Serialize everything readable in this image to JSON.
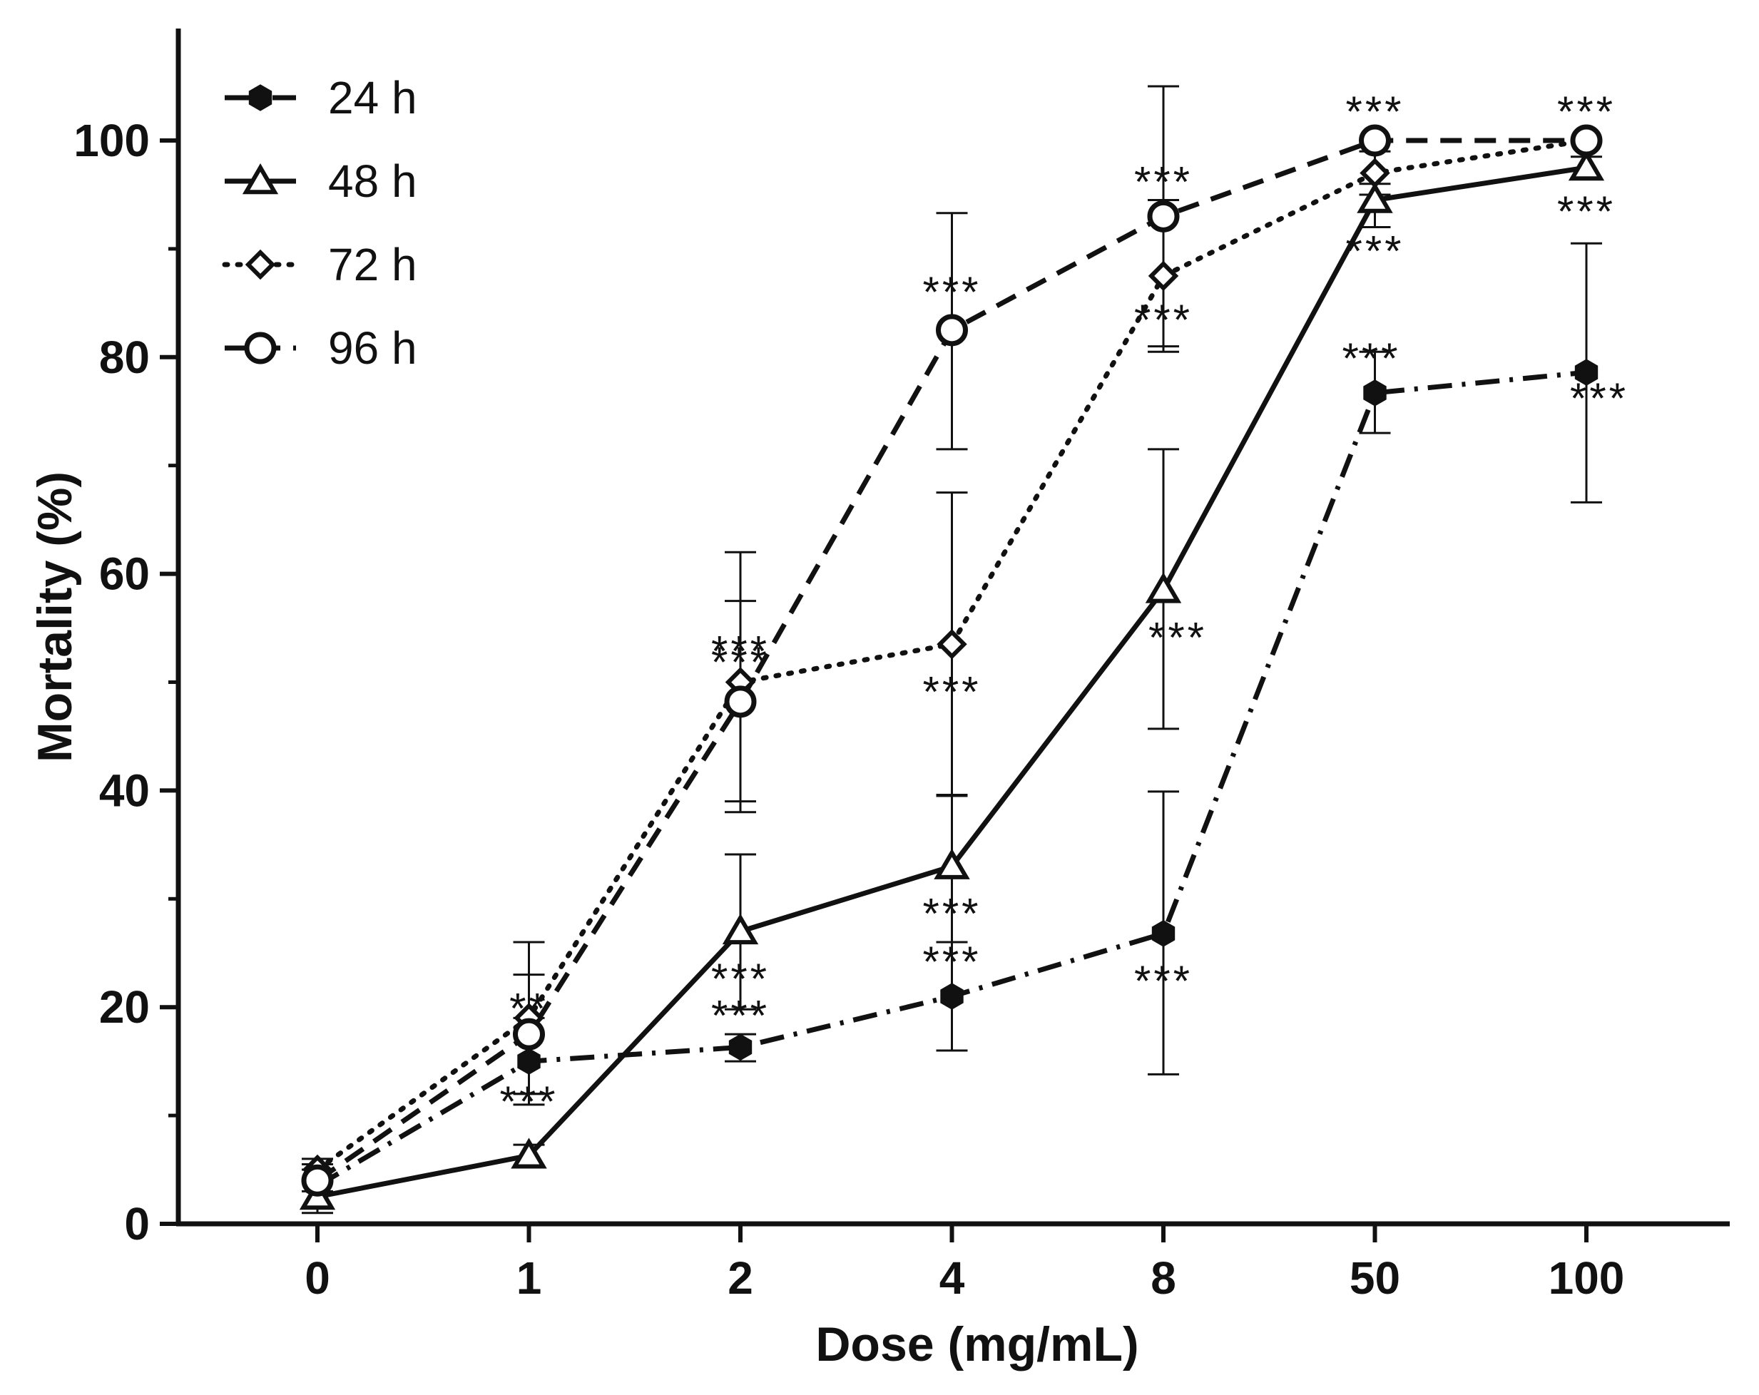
{
  "chart_data": {
    "type": "line",
    "title": "",
    "xlabel": "Dose (mg/mL)",
    "ylabel": "Mortality (%)",
    "categories": [
      "0",
      "1",
      "2",
      "4",
      "8",
      "50",
      "100"
    ],
    "ylim": [
      0,
      110
    ],
    "yticks": [
      0,
      20,
      40,
      60,
      80,
      100
    ],
    "grid": false,
    "legend_position": "top-left",
    "series": [
      {
        "name": "24 h",
        "line_style": "dash-dot",
        "marker": "filled-hexagon",
        "values": [
          3.5,
          15,
          16.3,
          21,
          26.8,
          76.7,
          78.6
        ],
        "error_low": [
          1.5,
          11,
          15,
          16,
          13.8,
          73,
          66.6
        ],
        "error_high": [
          5.5,
          19,
          17.5,
          26,
          39.9,
          80.5,
          90.5
        ],
        "significance": [
          "",
          "***",
          "***",
          "***",
          "***",
          "***",
          "***"
        ]
      },
      {
        "name": "48 h",
        "line_style": "solid",
        "marker": "open-triangle",
        "values": [
          2.5,
          6.3,
          27,
          33,
          58.5,
          94.5,
          97.5
        ],
        "error_low": [
          1,
          5.4,
          19.8,
          26,
          45.7,
          92,
          96.5
        ],
        "error_high": [
          4,
          7.3,
          34.1,
          39.5,
          71.5,
          96,
          98.5
        ],
        "significance": [
          "",
          "",
          "***",
          "***",
          "***",
          "***",
          "***"
        ]
      },
      {
        "name": "72 h",
        "line_style": "dotted",
        "marker": "open-diamond",
        "values": [
          5,
          19,
          50,
          53.5,
          87.5,
          97,
          100
        ],
        "error_low": [
          4,
          12,
          38,
          39.6,
          80.5,
          95,
          100
        ],
        "error_high": [
          6,
          26,
          62,
          67.5,
          94.5,
          99,
          100
        ],
        "significance": [
          "",
          "**",
          "***",
          "***",
          "***",
          "",
          ""
        ]
      },
      {
        "name": "96 h",
        "line_style": "dashed",
        "marker": "open-circle",
        "values": [
          4,
          17.5,
          48.2,
          82.5,
          93,
          100,
          100
        ],
        "error_low": [
          3,
          12,
          39,
          71.5,
          81,
          100,
          100
        ],
        "error_high": [
          5,
          23,
          57.5,
          93.3,
          105,
          100,
          100
        ],
        "significance": [
          "",
          "",
          "***",
          "***",
          "***",
          "***",
          "***"
        ]
      }
    ]
  }
}
